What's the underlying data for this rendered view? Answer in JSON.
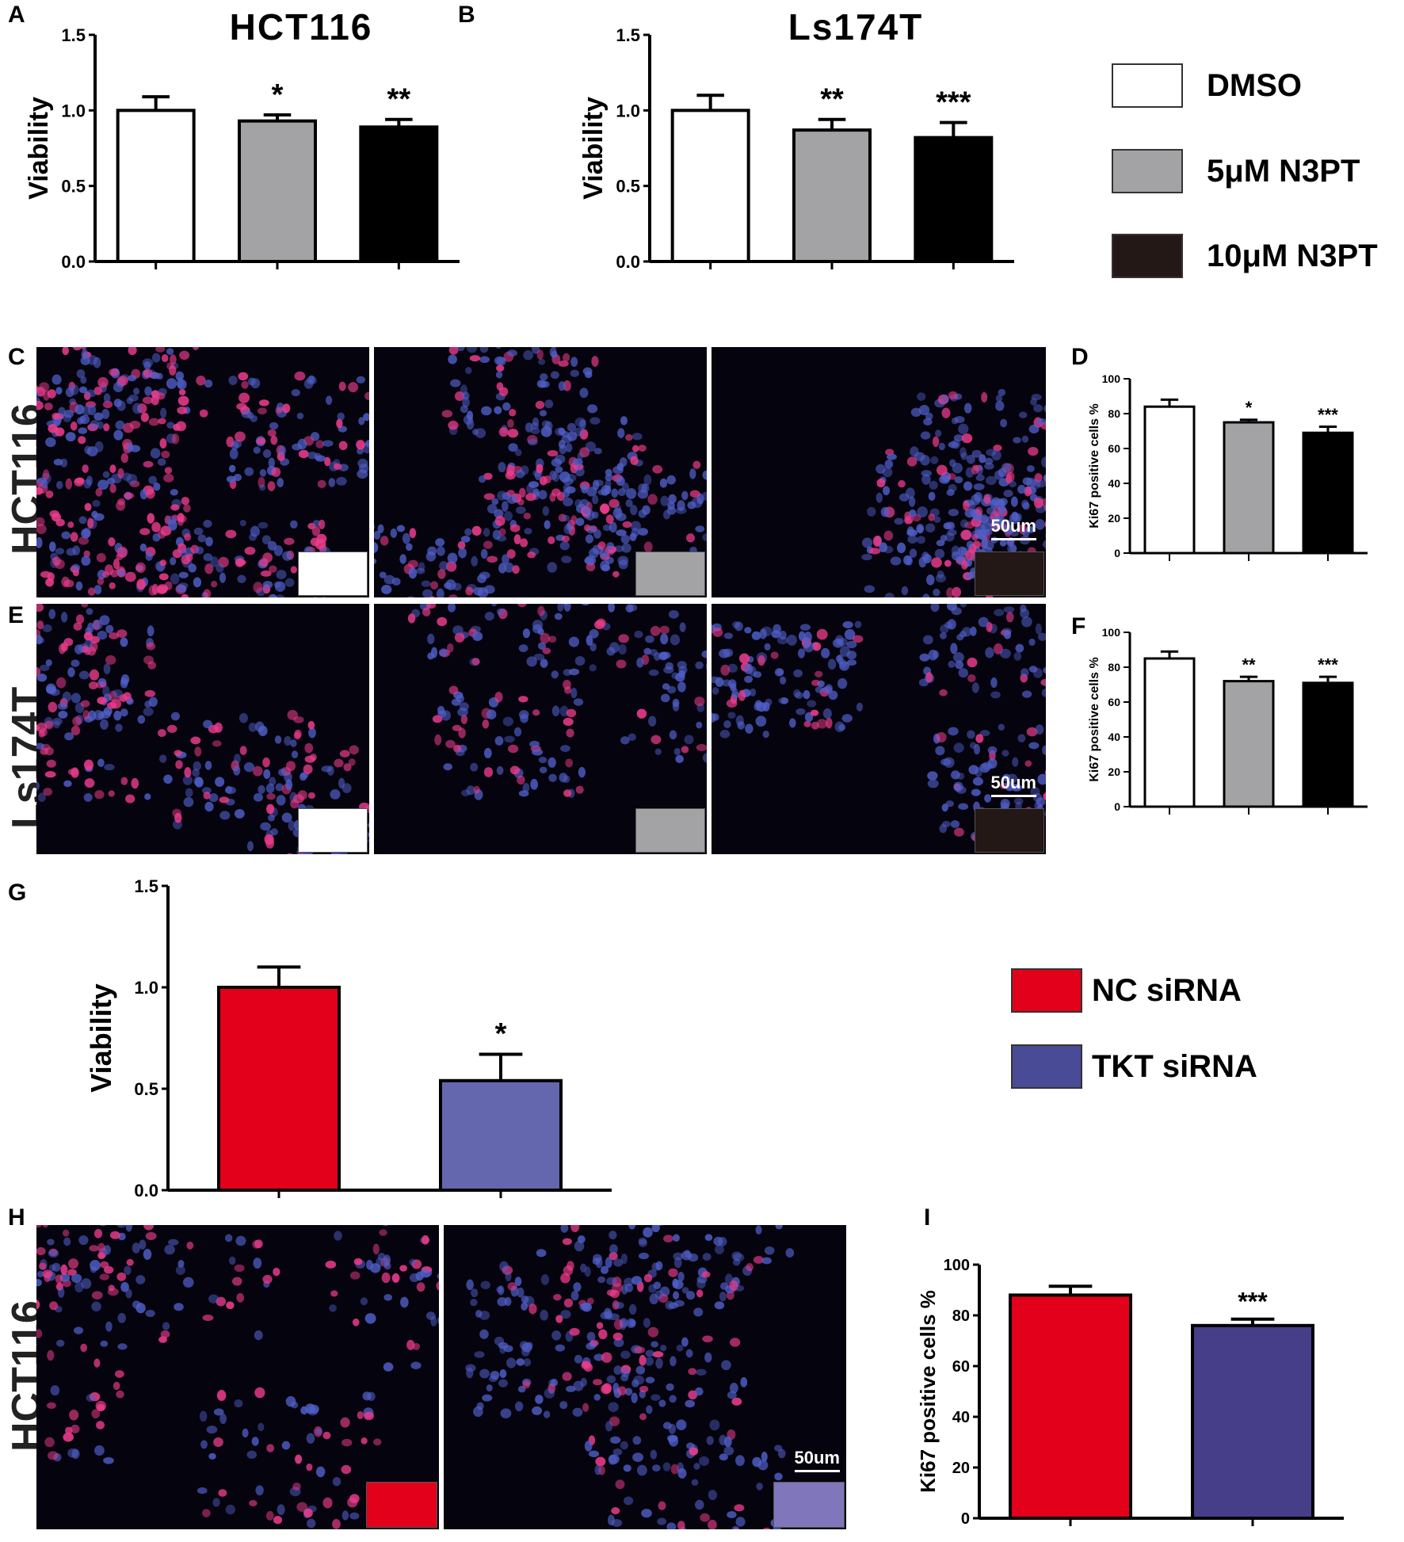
{
  "panel_letters": [
    "A",
    "B",
    "C",
    "D",
    "E",
    "F",
    "G",
    "H",
    "I"
  ],
  "legend_drug": [
    {
      "label": "DMSO",
      "color": "#ffffff"
    },
    {
      "label": "5μM N3PT",
      "color": "#a3a3a6"
    },
    {
      "label": "10μM N3PT",
      "color": "#000000"
    }
  ],
  "legend_sirna": [
    {
      "label": "NC siRNA",
      "color": "#e2001a"
    },
    {
      "label": "TKT siRNA",
      "color": "#6466ae"
    }
  ],
  "row_labels": {
    "c": "HCT116",
    "e": "Ls174T",
    "h": "HCT116"
  },
  "scale_bar_label": "50um",
  "micrograph_swatch_colors": {
    "c": [
      "#ffffff",
      "#a3a3a6",
      "#231816"
    ],
    "e": [
      "#ffffff",
      "#a3a3a6",
      "#231816"
    ],
    "h": [
      "#e2001a",
      "#7f76bb"
    ]
  },
  "chart_data": [
    {
      "id": "A",
      "type": "bar",
      "title": "HCT116",
      "xlabel": "",
      "ylabel": "Viability",
      "ylim": [
        0,
        1.5
      ],
      "yticks": [
        "0.0",
        "0.5",
        "1.0",
        "1.5"
      ],
      "categories": [
        "DMSO",
        "5μM N3PT",
        "10μM N3PT"
      ],
      "values": [
        1.0,
        0.93,
        0.89
      ],
      "errors": [
        0.09,
        0.04,
        0.05
      ],
      "significance": [
        "",
        "*",
        "**"
      ],
      "colors": [
        "#ffffff",
        "#a3a3a6",
        "#000000"
      ]
    },
    {
      "id": "B",
      "type": "bar",
      "title": "Ls174T",
      "xlabel": "",
      "ylabel": "Viability",
      "ylim": [
        0,
        1.5
      ],
      "yticks": [
        "0.0",
        "0.5",
        "1.0",
        "1.5"
      ],
      "categories": [
        "DMSO",
        "5μM N3PT",
        "10μM N3PT"
      ],
      "values": [
        1.0,
        0.87,
        0.82
      ],
      "errors": [
        0.1,
        0.07,
        0.1
      ],
      "significance": [
        "",
        "**",
        "***"
      ],
      "colors": [
        "#ffffff",
        "#a3a3a6",
        "#000000"
      ]
    },
    {
      "id": "D",
      "type": "bar",
      "title": "",
      "xlabel": "",
      "ylabel": "Ki67 positive cells %",
      "ylim": [
        0,
        100
      ],
      "yticks": [
        "0",
        "20",
        "40",
        "60",
        "80",
        "100"
      ],
      "categories": [
        "DMSO",
        "5μM N3PT",
        "10μM N3PT"
      ],
      "values": [
        84,
        75,
        69
      ],
      "errors": [
        4,
        1.5,
        3.5
      ],
      "significance": [
        "",
        "*",
        "***"
      ],
      "colors": [
        "#ffffff",
        "#a3a3a6",
        "#000000"
      ]
    },
    {
      "id": "F",
      "type": "bar",
      "title": "",
      "xlabel": "",
      "ylabel": "Ki67 positive cells %",
      "ylim": [
        0,
        100
      ],
      "yticks": [
        "0",
        "20",
        "40",
        "60",
        "80",
        "100"
      ],
      "categories": [
        "DMSO",
        "5μM N3PT",
        "10μM N3PT"
      ],
      "values": [
        85,
        72,
        71
      ],
      "errors": [
        4,
        2.5,
        3.5
      ],
      "significance": [
        "",
        "**",
        "***"
      ],
      "colors": [
        "#ffffff",
        "#a3a3a6",
        "#000000"
      ]
    },
    {
      "id": "G",
      "type": "bar",
      "title": "",
      "xlabel": "",
      "ylabel": "Viability",
      "ylim": [
        0,
        1.5
      ],
      "yticks": [
        "0.0",
        "0.5",
        "1.0",
        "1.5"
      ],
      "categories": [
        "NC siRNA",
        "TKT siRNA"
      ],
      "values": [
        1.0,
        0.54
      ],
      "errors": [
        0.1,
        0.13
      ],
      "significance": [
        "",
        "*"
      ],
      "colors": [
        "#e2001a",
        "#6466ae"
      ]
    },
    {
      "id": "I",
      "type": "bar",
      "title": "",
      "xlabel": "",
      "ylabel": "Ki67 positive cells %",
      "ylim": [
        0,
        100
      ],
      "yticks": [
        "0",
        "20",
        "40",
        "60",
        "80",
        "100"
      ],
      "categories": [
        "NC siRNA",
        "TKT siRNA"
      ],
      "values": [
        88,
        76
      ],
      "errors": [
        3.5,
        2.5
      ],
      "significance": [
        "",
        "***"
      ],
      "colors": [
        "#e2001a",
        "#463e88"
      ]
    }
  ]
}
